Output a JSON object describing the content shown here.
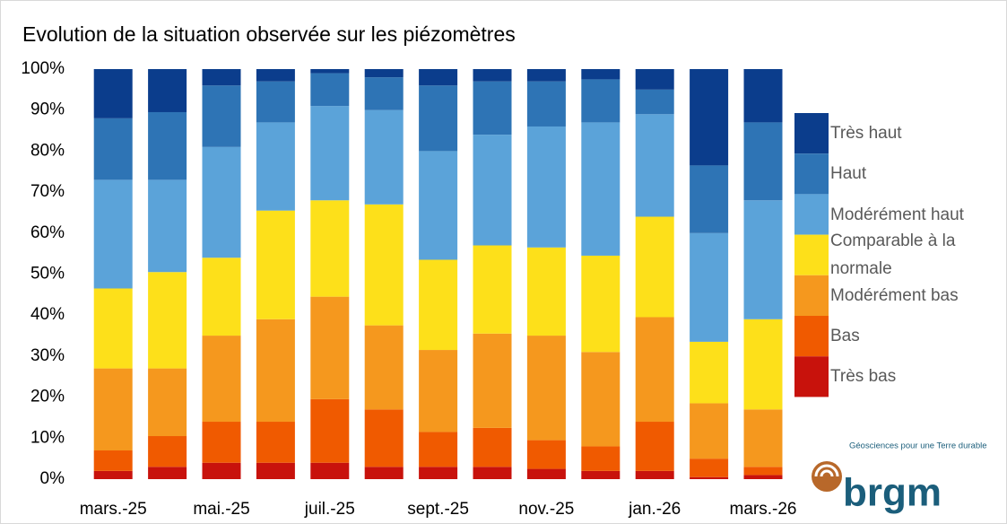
{
  "chart_data": {
    "type": "stacked_bar",
    "title": "Evolution de la situation observée sur les  piézomètres",
    "categories": [
      "mars.-25",
      null,
      "mai.-25",
      null,
      "juil.-25",
      null,
      "sept.-25",
      null,
      "nov.-25",
      null,
      "jan.-26",
      null,
      "mars.-26"
    ],
    "series": [
      {
        "name": "Très bas",
        "color": "#c8120c",
        "values": [
          2,
          3,
          4,
          4,
          4,
          3,
          3,
          3,
          2.5,
          2,
          2,
          0.5,
          1
        ]
      },
      {
        "name": "Bas",
        "color": "#f05a00",
        "values": [
          5,
          7.5,
          10,
          10,
          15.5,
          14,
          8.5,
          9.5,
          7,
          6,
          12,
          4.5,
          2
        ]
      },
      {
        "name": "Modérément bas",
        "color": "#f5981e",
        "values": [
          20,
          16.5,
          21,
          25,
          25,
          20.5,
          20,
          23,
          25.5,
          23,
          25.5,
          13.5,
          14
        ]
      },
      {
        "name": "Comparable à la normale",
        "color": "#fde01a",
        "values": [
          19.5,
          23.5,
          19,
          26.5,
          23.5,
          29.5,
          22,
          21.5,
          21.5,
          23.5,
          24.5,
          15,
          22
        ]
      },
      {
        "name": "Modérément haut",
        "color": "#5ba3d9",
        "values": [
          26.5,
          22.5,
          27,
          21.5,
          23,
          23,
          26.5,
          27,
          29.5,
          32.5,
          25,
          26.5,
          29
        ]
      },
      {
        "name": "Haut",
        "color": "#2e74b5",
        "values": [
          15,
          16.5,
          15,
          10,
          8,
          8,
          16,
          13,
          11,
          10.5,
          6,
          16.5,
          19
        ]
      },
      {
        "name": "Très haut",
        "color": "#0b3d8c",
        "values": [
          12,
          10.5,
          4,
          3,
          1,
          2,
          4,
          3,
          3,
          2.5,
          5,
          23.5,
          13
        ]
      }
    ],
    "ylim": [
      0,
      100
    ],
    "yticks": [
      {
        "value": 0,
        "label": "0%"
      },
      {
        "value": 10,
        "label": "10%"
      },
      {
        "value": 20,
        "label": "20%"
      },
      {
        "value": 30,
        "label": "30%"
      },
      {
        "value": 40,
        "label": "40%"
      },
      {
        "value": 50,
        "label": "50%"
      },
      {
        "value": 60,
        "label": "60%"
      },
      {
        "value": 70,
        "label": "70%"
      },
      {
        "value": 80,
        "label": "80%"
      },
      {
        "value": 90,
        "label": "90%"
      },
      {
        "value": 100,
        "label": "100%"
      }
    ],
    "legend": "right"
  },
  "logo": {
    "name": "brgm",
    "tagline": "Géosciences pour une Terre durable"
  }
}
